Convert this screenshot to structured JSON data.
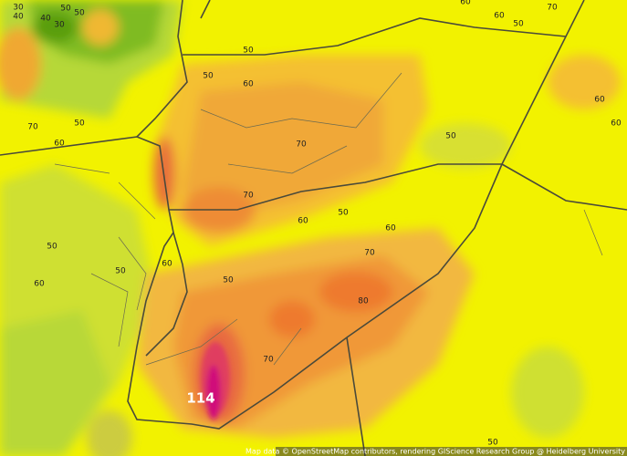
{
  "map": {
    "contour_labels": [
      30,
      40,
      40,
      30,
      50,
      50,
      50,
      50,
      60,
      70,
      50,
      60,
      70,
      50,
      60,
      60,
      60,
      70,
      60,
      50,
      70,
      60,
      50,
      60,
      70,
      50,
      50,
      60,
      50,
      60,
      80,
      70,
      114,
      50
    ],
    "attribution": "Map data © OpenStreetMap contributors, rendering GIScience Research Group @ Heidelberg University"
  }
}
